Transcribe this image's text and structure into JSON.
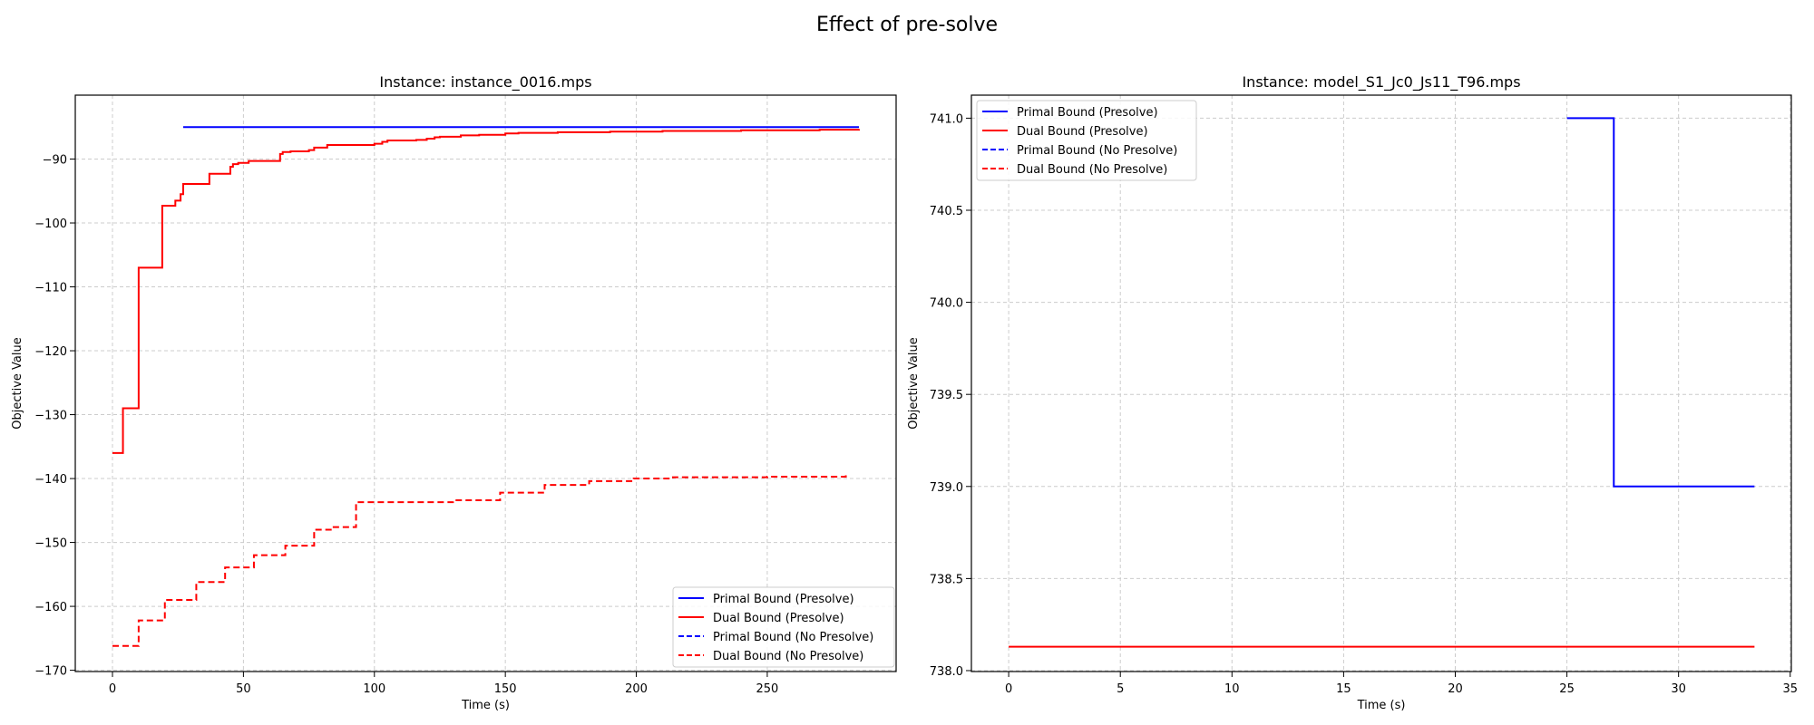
{
  "figure_title": "Effect of pre-solve",
  "chart_data": [
    {
      "type": "line",
      "title": "Instance: instance_0016.mps",
      "xlabel": "Time (s)",
      "ylabel": "Objective Value",
      "xlim": [
        -14.2,
        299.2
      ],
      "ylim": [
        -170.2,
        -80.0
      ],
      "xticks": [
        0,
        50,
        100,
        150,
        200,
        250
      ],
      "yticks": [
        -170,
        -160,
        -150,
        -140,
        -130,
        -120,
        -110,
        -100,
        -90
      ],
      "grid": true,
      "legend_position": "lower right",
      "series": [
        {
          "name": "Primal Bound (Presolve)",
          "color": "#0000ff",
          "dash": "solid",
          "step": true,
          "x": [
            27,
            285
          ],
          "y": [
            -85,
            -85
          ]
        },
        {
          "name": "Dual Bound (Presolve)",
          "color": "#ff0000",
          "dash": "solid",
          "step": true,
          "x": [
            0,
            4,
            10,
            19,
            24,
            26,
            27,
            37,
            45,
            46,
            48,
            52,
            64,
            65,
            68,
            75,
            77,
            82,
            100,
            103,
            105,
            116,
            120,
            123,
            125,
            133,
            140,
            150,
            155,
            170,
            190,
            210,
            240,
            270,
            285
          ],
          "y": [
            -136,
            -129,
            -107,
            -97.3,
            -96.5,
            -95.5,
            -93.9,
            -92.3,
            -91.2,
            -90.8,
            -90.6,
            -90.3,
            -89.2,
            -88.9,
            -88.8,
            -88.6,
            -88.2,
            -87.8,
            -87.6,
            -87.3,
            -87.1,
            -87.0,
            -86.8,
            -86.6,
            -86.5,
            -86.3,
            -86.2,
            -86.0,
            -85.9,
            -85.8,
            -85.7,
            -85.6,
            -85.5,
            -85.4,
            -85.3
          ]
        },
        {
          "name": "Primal Bound (No Presolve)",
          "color": "#0000ff",
          "dash": "dashed",
          "step": true,
          "x": [],
          "y": []
        },
        {
          "name": "Dual Bound (No Presolve)",
          "color": "#ff0000",
          "dash": "dashed",
          "step": true,
          "x": [
            0,
            10,
            20,
            32,
            43,
            54,
            66,
            77,
            84,
            93,
            130,
            148,
            165,
            182,
            199,
            214,
            250,
            280
          ],
          "y": [
            -166.2,
            -162.2,
            -159.0,
            -156.2,
            -153.9,
            -152.0,
            -150.5,
            -148.0,
            -147.6,
            -143.7,
            -143.4,
            -142.2,
            -141.0,
            -140.4,
            -140.0,
            -139.8,
            -139.7,
            -139.5
          ]
        }
      ]
    },
    {
      "type": "line",
      "title": "Instance: model_S1_Jc0_Js11_T96.mps",
      "xlabel": "Time (s)",
      "ylabel": "Objective Value",
      "xlim": [
        -1.67,
        35.05
      ],
      "ylim": [
        737.995,
        741.125
      ],
      "xticks": [
        0,
        5,
        10,
        15,
        20,
        25,
        30,
        35
      ],
      "yticks": [
        738.0,
        738.5,
        739.0,
        739.5,
        740.0,
        740.5,
        741.0
      ],
      "grid": true,
      "legend_position": "upper left",
      "series": [
        {
          "name": "Primal Bound (Presolve)",
          "color": "#0000ff",
          "dash": "solid",
          "step": true,
          "x": [
            25.0,
            27.1,
            33.4
          ],
          "y": [
            741.0,
            739.0,
            739.0
          ]
        },
        {
          "name": "Dual Bound (Presolve)",
          "color": "#ff0000",
          "dash": "solid",
          "step": true,
          "x": [
            0,
            33.4
          ],
          "y": [
            738.13,
            738.13
          ]
        },
        {
          "name": "Primal Bound (No Presolve)",
          "color": "#0000ff",
          "dash": "dashed",
          "step": true,
          "x": [],
          "y": []
        },
        {
          "name": "Dual Bound (No Presolve)",
          "color": "#ff0000",
          "dash": "dashed",
          "step": true,
          "x": [],
          "y": []
        }
      ]
    }
  ]
}
